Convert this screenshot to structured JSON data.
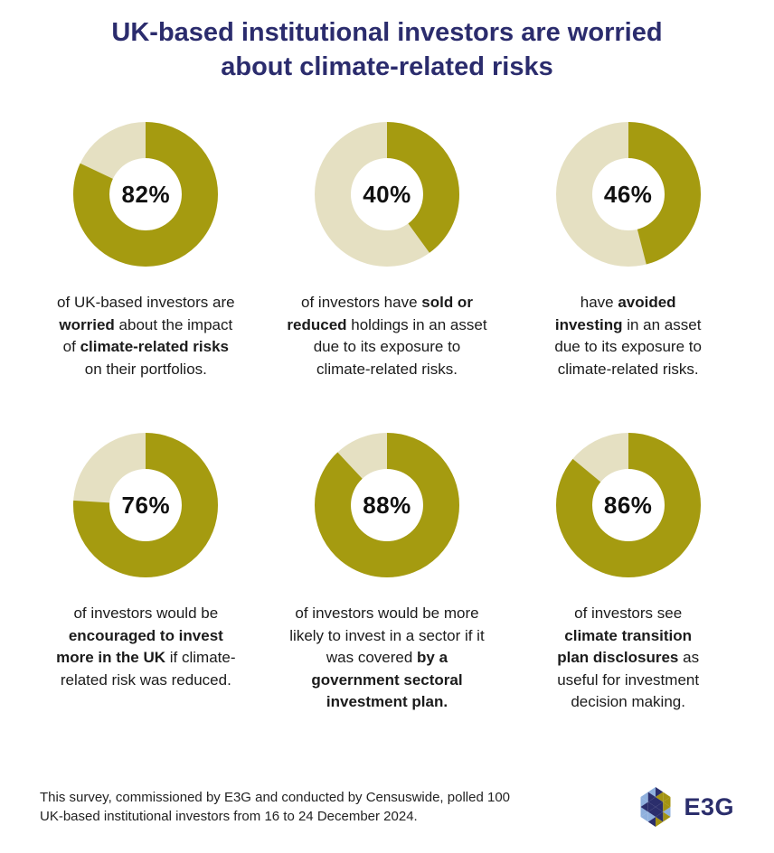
{
  "title": {
    "line1": "UK-based institutional investors are worried",
    "line2": "about climate-related risks"
  },
  "colors": {
    "donut_fill": "#A59B10",
    "donut_rest": "#E5E0C2",
    "title_navy": "#2B2C6D",
    "logo_navy": "#2B2E6C",
    "logo_blue": "#8FB0DD",
    "logo_gold": "#A39312"
  },
  "chart_data": [
    {
      "type": "pie",
      "variant": "donut",
      "label": "82%",
      "value": 82,
      "remainder": 18,
      "caption_plain": "of UK-based investors are worried about the impact of climate-related risks on their portfolios.",
      "caption_lines": [
        [
          {
            "t": "of UK-based investors are"
          }
        ],
        [
          {
            "t": "worried",
            "b": true
          },
          {
            "t": " about the impact"
          }
        ],
        [
          {
            "t": "of "
          },
          {
            "t": "climate-related risks",
            "b": true
          }
        ],
        [
          {
            "t": "on their portfolios."
          }
        ]
      ]
    },
    {
      "type": "pie",
      "variant": "donut",
      "label": "40%",
      "value": 40,
      "remainder": 60,
      "caption_plain": "of investors have sold or reduced holdings in an asset due to its exposure to climate-related risks.",
      "caption_lines": [
        [
          {
            "t": "of investors have "
          },
          {
            "t": "sold or",
            "b": true
          }
        ],
        [
          {
            "t": "reduced",
            "b": true
          },
          {
            "t": " holdings in an asset"
          }
        ],
        [
          {
            "t": "due to its exposure to"
          }
        ],
        [
          {
            "t": "climate-related risks."
          }
        ]
      ]
    },
    {
      "type": "pie",
      "variant": "donut",
      "label": "46%",
      "value": 46,
      "remainder": 54,
      "caption_plain": "have avoided investing in an asset due to its exposure to climate-related risks.",
      "caption_lines": [
        [
          {
            "t": "have "
          },
          {
            "t": "avoided",
            "b": true
          }
        ],
        [
          {
            "t": "investing",
            "b": true
          },
          {
            "t": " in an asset"
          }
        ],
        [
          {
            "t": "due to its exposure to"
          }
        ],
        [
          {
            "t": "climate-related risks."
          }
        ]
      ]
    },
    {
      "type": "pie",
      "variant": "donut",
      "label": "76%",
      "value": 76,
      "remainder": 24,
      "caption_plain": "of investors would be encouraged to invest more in the UK if climate-related risk was reduced.",
      "caption_lines": [
        [
          {
            "t": "of investors would be"
          }
        ],
        [
          {
            "t": "encouraged to invest",
            "b": true
          }
        ],
        [
          {
            "t": "more in the UK",
            "b": true
          },
          {
            "t": " if climate-"
          }
        ],
        [
          {
            "t": "related risk was reduced."
          }
        ]
      ]
    },
    {
      "type": "pie",
      "variant": "donut",
      "label": "88%",
      "value": 88,
      "remainder": 12,
      "caption_plain": "of investors would be more likely to invest in a sector if it was covered by a government sectoral investment plan.",
      "caption_lines": [
        [
          {
            "t": "of investors would be more"
          }
        ],
        [
          {
            "t": "likely to invest in a sector if it"
          }
        ],
        [
          {
            "t": "was covered "
          },
          {
            "t": "by a",
            "b": true
          }
        ],
        [
          {
            "t": "government sectoral",
            "b": true
          }
        ],
        [
          {
            "t": "investment plan.",
            "b": true
          }
        ]
      ]
    },
    {
      "type": "pie",
      "variant": "donut",
      "label": "86%",
      "value": 86,
      "remainder": 14,
      "caption_plain": "of investors see climate transition plan disclosures as useful for investment decision making.",
      "caption_lines": [
        [
          {
            "t": "of investors see"
          }
        ],
        [
          {
            "t": "climate transition",
            "b": true
          }
        ],
        [
          {
            "t": "plan disclosures",
            "b": true
          },
          {
            "t": " as"
          }
        ],
        [
          {
            "t": "useful for investment"
          }
        ],
        [
          {
            "t": "decision making."
          }
        ]
      ]
    }
  ],
  "footer": {
    "source_line1": "This survey, commissioned by E3G and conducted by Censuswide, polled 100",
    "source_line2": "UK-based institutional investors from 16 to 24 December 2024.",
    "logo_text": "E3G"
  }
}
